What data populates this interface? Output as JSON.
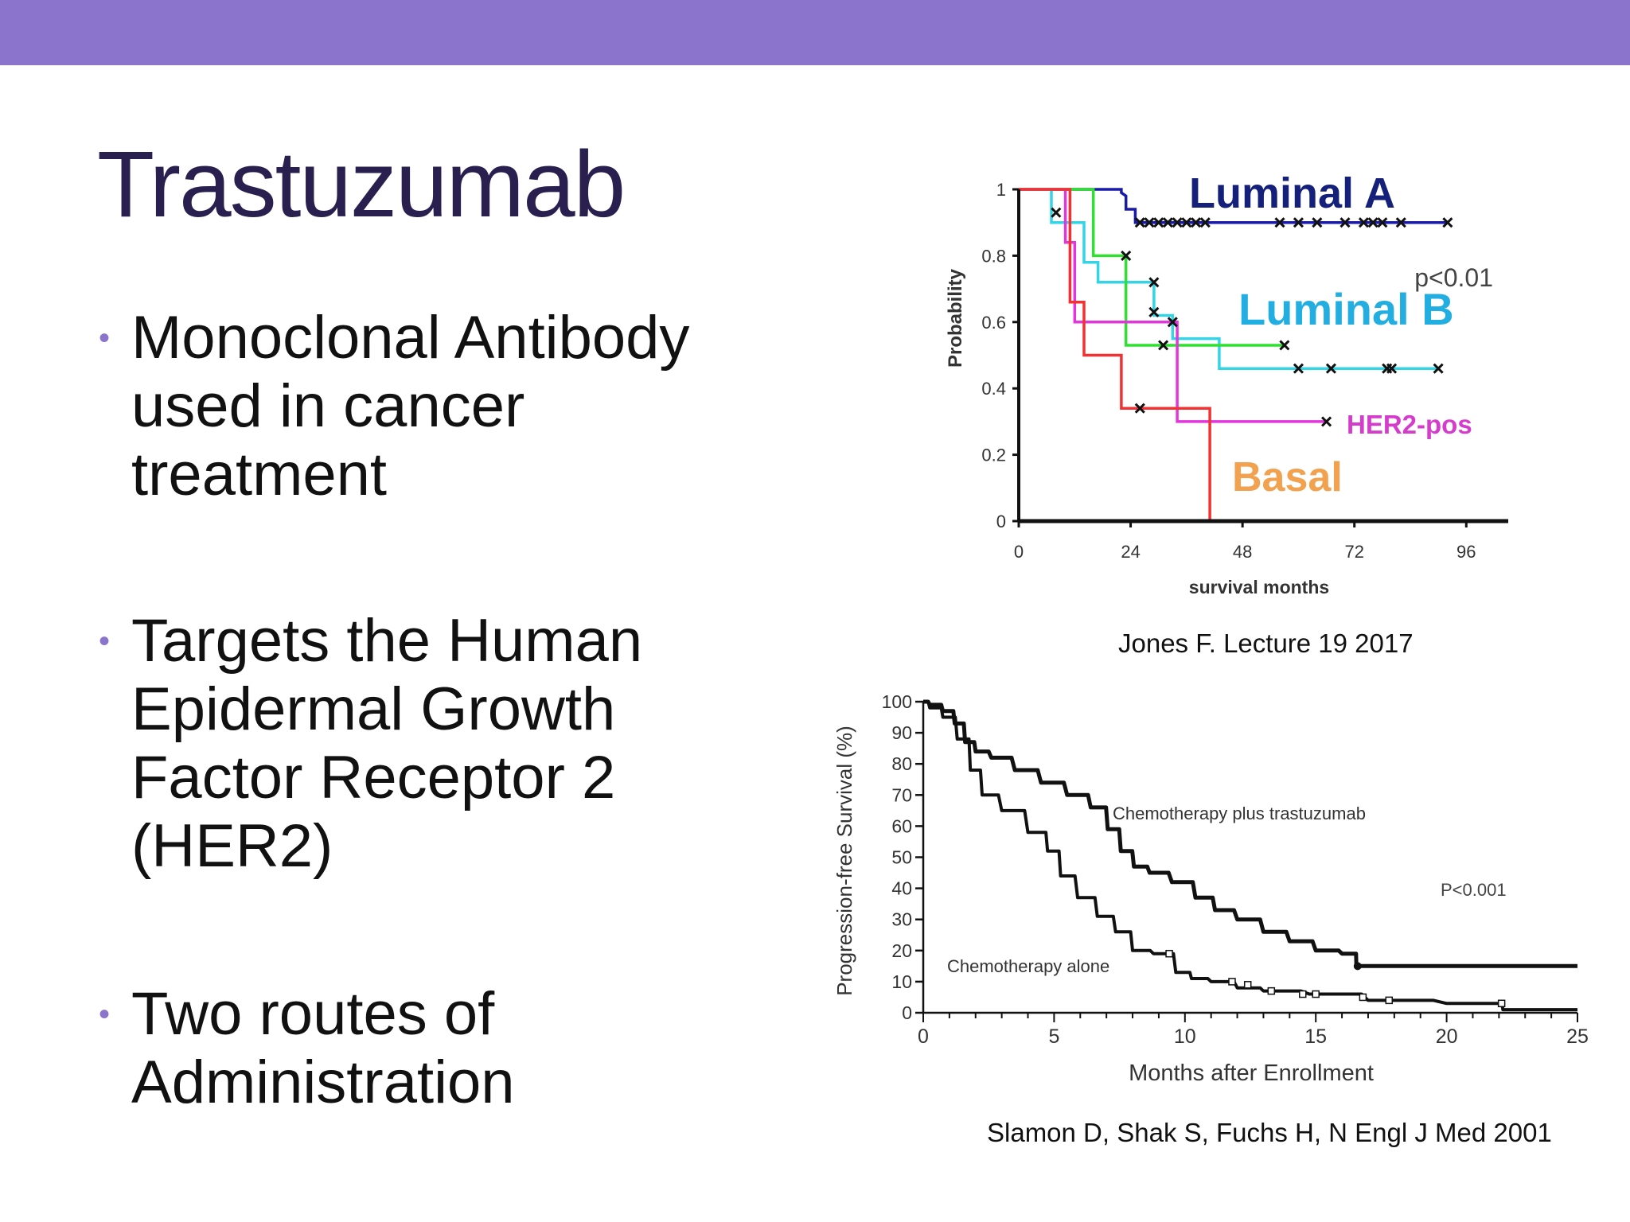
{
  "colors": {
    "top_bar": "#8b74cc",
    "title": "#2a2050",
    "bullet_dot": "#8b74cc"
  },
  "slide": {
    "title": "Trastuzumab",
    "bullets": [
      {
        "text": "Monoclonal Antibody\nused in cancer\ntreatment"
      },
      {
        "text": "Targets the Human\nEpidermal Growth\nFactor Receptor 2\n(HER2)"
      },
      {
        "text": "Two routes of\nAdministration"
      }
    ],
    "citation_top": "Jones F. Lecture 19 2017",
    "citation_bottom": "Slamon D, Shak S, Fuchs H, N Engl J Med 2001"
  },
  "chart_data": [
    {
      "type": "line",
      "step": true,
      "title": "",
      "xlabel": "survival months",
      "ylabel": "Probability",
      "xlim": [
        0,
        105
      ],
      "ylim": [
        0,
        1
      ],
      "xticks": [
        0,
        24,
        48,
        72,
        96
      ],
      "yticks": [
        0,
        0.2,
        0.4,
        0.6,
        0.8,
        1
      ],
      "ytick_labels": [
        "0",
        "0.2",
        "0.4",
        "0.6",
        "0.8",
        "1"
      ],
      "annotation": "p<0.01",
      "series": [
        {
          "name": "Luminal A",
          "color": "#1a1aa8",
          "label_color": "#14207a",
          "points": [
            [
              0,
              1
            ],
            [
              22,
              1
            ],
            [
              22,
              0.99
            ],
            [
              23,
              0.98
            ],
            [
              23,
              0.94
            ],
            [
              25,
              0.94
            ],
            [
              25,
              0.9
            ],
            [
              92,
              0.9
            ]
          ],
          "censored": [
            [
              26,
              0.9
            ],
            [
              28,
              0.9
            ],
            [
              30,
              0.9
            ],
            [
              32,
              0.9
            ],
            [
              34,
              0.9
            ],
            [
              36,
              0.9
            ],
            [
              38,
              0.9
            ],
            [
              40,
              0.9
            ],
            [
              56,
              0.9
            ],
            [
              60,
              0.9
            ],
            [
              64,
              0.9
            ],
            [
              70,
              0.9
            ],
            [
              74,
              0.9
            ],
            [
              76,
              0.9
            ],
            [
              78,
              0.9
            ],
            [
              82,
              0.9
            ],
            [
              92,
              0.9
            ]
          ]
        },
        {
          "name": "Luminal B",
          "color": "#33d4e6",
          "label_color": "#22aee0",
          "points": [
            [
              0,
              1
            ],
            [
              7,
              1
            ],
            [
              7,
              0.9
            ],
            [
              14,
              0.9
            ],
            [
              14,
              0.78
            ],
            [
              17,
              0.78
            ],
            [
              17,
              0.72
            ],
            [
              29,
              0.72
            ],
            [
              29,
              0.62
            ],
            [
              33,
              0.62
            ],
            [
              33,
              0.55
            ],
            [
              43,
              0.55
            ],
            [
              43,
              0.46
            ],
            [
              90,
              0.46
            ]
          ],
          "censored": [
            [
              29,
              0.63
            ],
            [
              60,
              0.46
            ],
            [
              67,
              0.46
            ],
            [
              79,
              0.46
            ],
            [
              80,
              0.46
            ],
            [
              90,
              0.46
            ]
          ]
        },
        {
          "name": "",
          "color": "#30e030",
          "points": [
            [
              0,
              1
            ],
            [
              16,
              1
            ],
            [
              16,
              0.8
            ],
            [
              23,
              0.8
            ],
            [
              23,
              0.53
            ],
            [
              57,
              0.53
            ]
          ],
          "censored": [
            [
              23,
              0.8
            ],
            [
              29,
              0.72
            ],
            [
              31,
              0.53
            ],
            [
              57,
              0.53
            ]
          ]
        },
        {
          "name": "HER2-pos",
          "color": "#e236dc",
          "label_color": "#d63ccc",
          "points": [
            [
              0,
              1
            ],
            [
              10,
              1
            ],
            [
              10,
              0.84
            ],
            [
              12,
              0.84
            ],
            [
              12,
              0.6
            ],
            [
              34,
              0.6
            ],
            [
              34,
              0.3
            ],
            [
              66,
              0.3
            ]
          ],
          "censored": [
            [
              8,
              0.93
            ],
            [
              33,
              0.6
            ],
            [
              66,
              0.3
            ]
          ]
        },
        {
          "name": "Basal",
          "color": "#f23232",
          "label_color": "#f2a14e",
          "points": [
            [
              0,
              1
            ],
            [
              11,
              1
            ],
            [
              11,
              0.66
            ],
            [
              14,
              0.66
            ],
            [
              14,
              0.5
            ],
            [
              22,
              0.5
            ],
            [
              22,
              0.34
            ],
            [
              41,
              0.34
            ],
            [
              41,
              0
            ]
          ],
          "censored": [
            [
              26,
              0.34
            ]
          ]
        }
      ]
    },
    {
      "type": "line",
      "step": true,
      "title": "",
      "xlabel": "Months after Enrollment",
      "ylabel": "Progression-free Survival (%)",
      "xlim": [
        0,
        25
      ],
      "ylim": [
        0,
        100
      ],
      "xticks": [
        0,
        5,
        10,
        15,
        20,
        25
      ],
      "yticks": [
        0,
        10,
        20,
        30,
        40,
        50,
        60,
        70,
        80,
        90,
        100
      ],
      "annotation": "P<0.001",
      "series": [
        {
          "name": "Chemotherapy plus trastuzumab",
          "color": "#111111",
          "points": [
            [
              0,
              100
            ],
            [
              0.5,
              99
            ],
            [
              1,
              97
            ],
            [
              1.4,
              93
            ],
            [
              1.8,
              87
            ],
            [
              2.2,
              84
            ],
            [
              3,
              82
            ],
            [
              4,
              78
            ],
            [
              5,
              74
            ],
            [
              6,
              70
            ],
            [
              6.8,
              66
            ],
            [
              7.3,
              59
            ],
            [
              7.8,
              52
            ],
            [
              8.3,
              47
            ],
            [
              9,
              45
            ],
            [
              10,
              42
            ],
            [
              10.8,
              37
            ],
            [
              11.5,
              33
            ],
            [
              12.5,
              30
            ],
            [
              13.5,
              26
            ],
            [
              14.5,
              23
            ],
            [
              15.5,
              20
            ],
            [
              16.5,
              19
            ],
            [
              16.6,
              15
            ],
            [
              25,
              15
            ]
          ],
          "censored": [
            [
              16.6,
              15
            ]
          ]
        },
        {
          "name": "Chemotherapy alone",
          "color": "#111111",
          "points": [
            [
              0,
              100
            ],
            [
              0.5,
              98
            ],
            [
              1,
              95
            ],
            [
              1.6,
              88
            ],
            [
              2,
              78
            ],
            [
              2.5,
              70
            ],
            [
              3.5,
              65
            ],
            [
              4.5,
              58
            ],
            [
              5,
              52
            ],
            [
              5.5,
              44
            ],
            [
              6.3,
              37
            ],
            [
              7,
              31
            ],
            [
              7.7,
              26
            ],
            [
              8.3,
              20
            ],
            [
              9.3,
              19
            ],
            [
              10,
              13
            ],
            [
              10.5,
              11
            ],
            [
              11.5,
              10
            ],
            [
              12.5,
              8
            ],
            [
              13.5,
              7
            ],
            [
              16,
              6
            ],
            [
              18,
              4
            ],
            [
              22,
              3
            ],
            [
              22.3,
              1
            ],
            [
              25,
              1
            ]
          ],
          "censored": [
            [
              9.4,
              19
            ],
            [
              11.8,
              10
            ],
            [
              12.4,
              9
            ],
            [
              13.3,
              7
            ],
            [
              14.5,
              6
            ],
            [
              15,
              6
            ],
            [
              16.8,
              5
            ],
            [
              17.8,
              4
            ],
            [
              22.1,
              3
            ]
          ]
        }
      ]
    }
  ]
}
